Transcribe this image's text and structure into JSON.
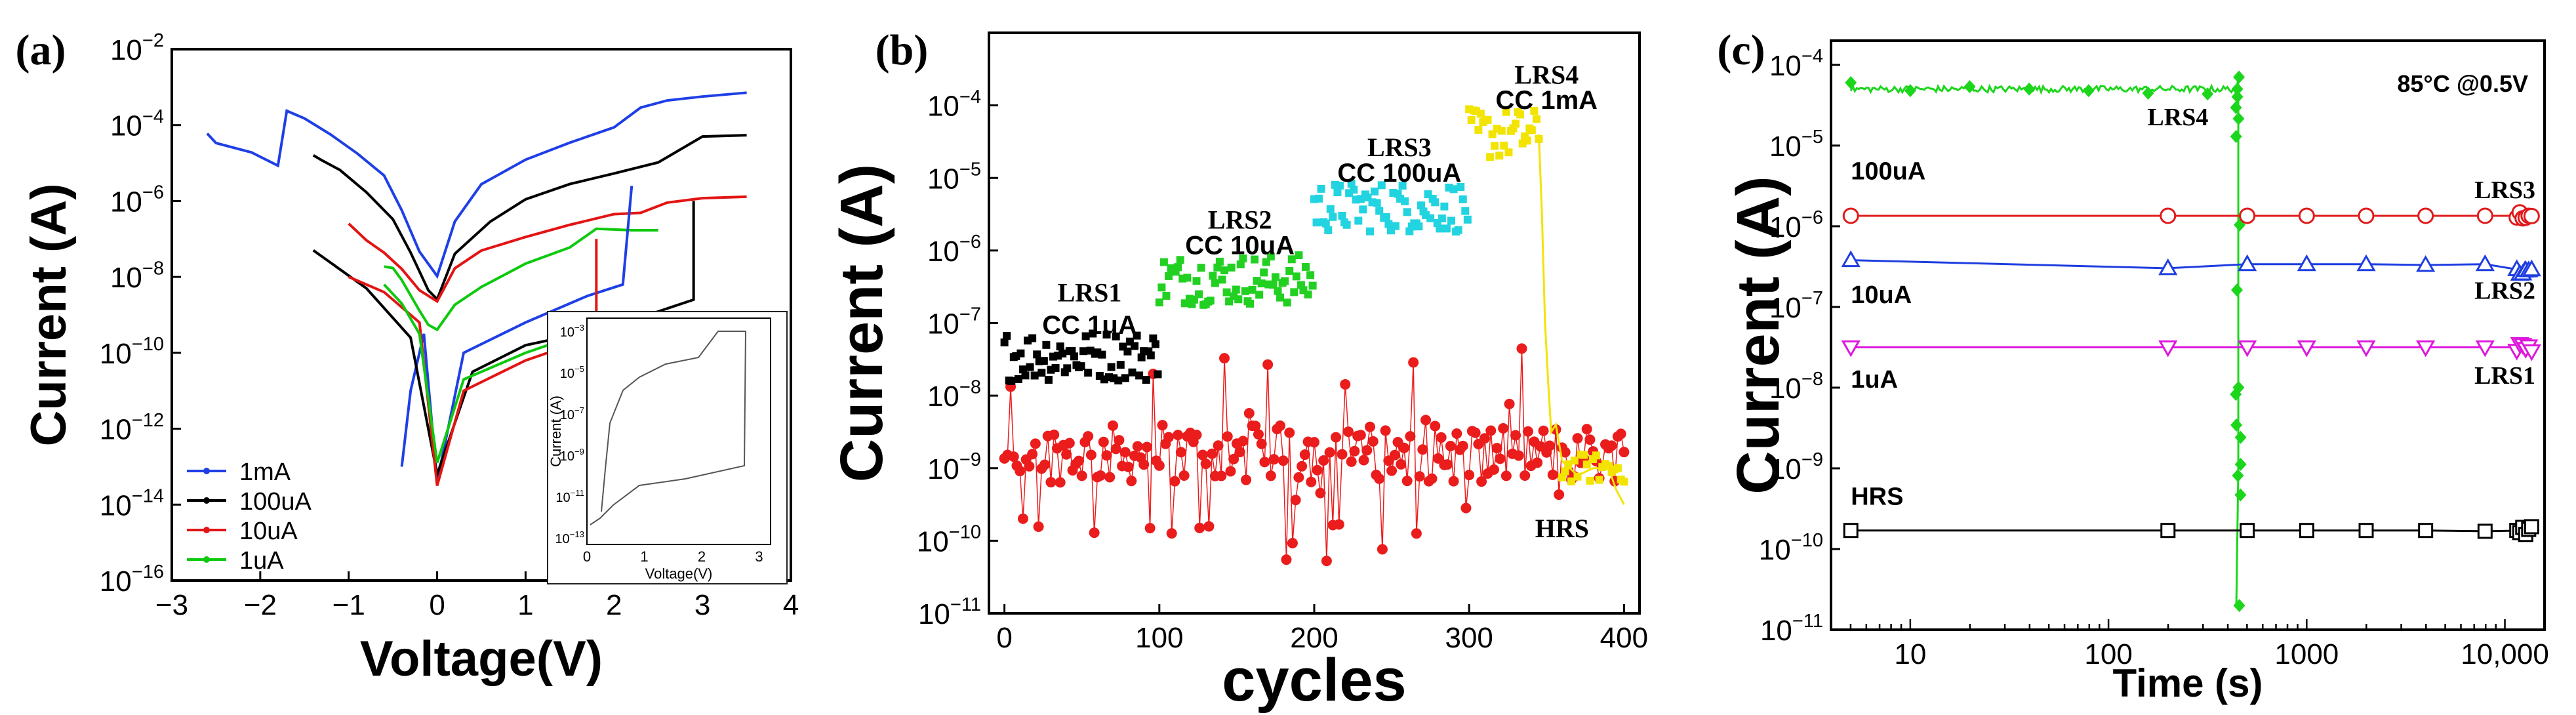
{
  "chart_data": [
    {
      "panel": "(a)",
      "type": "line",
      "xlabel": "Voltage(V)",
      "ylabel": "Current (A)",
      "xlim": [
        -3,
        4
      ],
      "ylim_log10": [
        -16,
        -2
      ],
      "xticks": [
        "−3",
        "−2",
        "−1",
        "0",
        "1",
        "2",
        "3",
        "4"
      ],
      "yticks": [
        {
          "b": "10",
          "e": "-2"
        },
        {
          "b": "10",
          "e": "-4"
        },
        {
          "b": "10",
          "e": "-6"
        },
        {
          "b": "10",
          "e": "-8"
        },
        {
          "b": "10",
          "e": "-10"
        },
        {
          "b": "10",
          "e": "-12"
        },
        {
          "b": "10",
          "e": "-14"
        },
        {
          "b": "10",
          "e": "-16"
        }
      ],
      "series": [
        {
          "name": "1mA",
          "color": "#1f3fe6",
          "x": [
            -2.6,
            -2.5,
            -2.1,
            -1.8,
            -1.7,
            -1.5,
            -1.2,
            -0.9,
            -0.6,
            -0.4,
            -0.2,
            0,
            0.2,
            0.5,
            1,
            1.5,
            2,
            2.3,
            2.6,
            3,
            3.5
          ],
          "log10I": [
            -4.2,
            -4.5,
            -4.7,
            -5.0,
            -3.6,
            -3.8,
            -4.3,
            -4.7,
            -5.3,
            -6.2,
            -7.3,
            -8.0,
            -6.5,
            -5.6,
            -4.9,
            -4.5,
            -4.1,
            -3.5,
            -3.3,
            -3.2,
            -3.2
          ]
        },
        {
          "name": "100uA",
          "color": "#000000",
          "x": [
            -1.4,
            -1.3,
            -1.1,
            -0.8,
            -0.5,
            -0.3,
            -0.1,
            0,
            0.2,
            0.6,
            1,
            1.5,
            2,
            2.5,
            3,
            3.5
          ],
          "log10I": [
            -4.8,
            -4.9,
            -5.2,
            -5.8,
            -6.5,
            -7.3,
            -8.3,
            -8.6,
            -7.4,
            -6.5,
            -6.0,
            -5.6,
            -5.3,
            -5.0,
            -4.3,
            -4.2
          ]
        },
        {
          "name": "10uA",
          "color": "#e31414",
          "x": [
            -1.0,
            -0.8,
            -0.6,
            -0.4,
            -0.2,
            0,
            0.2,
            0.5,
            1,
            1.5,
            2,
            2.3,
            2.6,
            3,
            3.5
          ],
          "log10I": [
            -6.6,
            -7.0,
            -7.4,
            -7.8,
            -8.3,
            -8.6,
            -7.8,
            -7.3,
            -6.9,
            -6.6,
            -6.4,
            -6.3,
            -6.1,
            -5.9,
            -5.9
          ]
        },
        {
          "name": "1uA",
          "color": "#0ec90e",
          "x": [
            -0.6,
            -0.5,
            -0.4,
            -0.3,
            -0.2,
            -0.1,
            0,
            0.2,
            0.5,
            1,
            1.5,
            1.8,
            2.2,
            2.5
          ],
          "log10I": [
            -7.7,
            -7.8,
            -8.1,
            -8.5,
            -8.9,
            -9.2,
            -9.4,
            -8.8,
            -8.3,
            -7.7,
            -7.2,
            -6.8,
            -6.8,
            -6.8
          ]
        }
      ],
      "legend": [
        "1mA",
        "100uA",
        "10uA",
        "1uA"
      ],
      "inset": {
        "xlabel": "Voltage(V)",
        "ylabel": "Current (A)",
        "xticks": [
          "0",
          "1",
          "2",
          "3"
        ],
        "yticks": [
          {
            "b": "10",
            "e": "-3"
          },
          {
            "b": "10",
            "e": "-5"
          },
          {
            "b": "10",
            "e": "-7"
          },
          {
            "b": "10",
            "e": "-9"
          },
          {
            "b": "10",
            "e": "-11"
          },
          {
            "b": "10",
            "e": "-13"
          }
        ]
      }
    },
    {
      "panel": "(b)",
      "type": "scatter",
      "xlabel": "cycles",
      "ylabel": "Current (A)",
      "xlim": [
        -10,
        410
      ],
      "ylim_log10": [
        -11,
        -3
      ],
      "xticks": [
        "0",
        "100",
        "200",
        "300",
        "400"
      ],
      "yticks": [
        {
          "b": "10",
          "e": "-4"
        },
        {
          "b": "10",
          "e": "-5"
        },
        {
          "b": "10",
          "e": "-6"
        },
        {
          "b": "10",
          "e": "-7"
        },
        {
          "b": "10",
          "e": "-8"
        },
        {
          "b": "10",
          "e": "-9"
        },
        {
          "b": "10",
          "e": "-10"
        },
        {
          "b": "10",
          "e": "-11"
        }
      ],
      "series": [
        {
          "name": "LRS1",
          "color": "#000000",
          "x_range": [
            0,
            100
          ],
          "log10I_mean": -7.45
        },
        {
          "name": "LRS2",
          "color": "#22d022",
          "x_range": [
            100,
            200
          ],
          "log10I_mean": -6.4
        },
        {
          "name": "LRS3",
          "color": "#22d3e0",
          "x_range": [
            200,
            300
          ],
          "log10I_mean": -5.4
        },
        {
          "name": "LRS4",
          "color": "#f2e400",
          "x_range": [
            300,
            345
          ],
          "log10I_mean": -4.4
        },
        {
          "name": "HRS",
          "color": "#ea1c1c",
          "x_range": [
            0,
            400
          ],
          "log10I_mean": -8.8
        }
      ],
      "annotations": [
        {
          "text": "LRS1",
          "color": "#000000",
          "x": 55,
          "log10I": -6.7,
          "serif": true
        },
        {
          "text": "CC 1uA",
          "color": "#000000",
          "x": 55,
          "log10I": -7.15,
          "serif": false
        },
        {
          "text": "LRS2",
          "color": "#22d022",
          "x": 152,
          "log10I": -5.7,
          "serif": true
        },
        {
          "text": "CC 10uA",
          "color": "#000000",
          "x": 152,
          "log10I": -6.05,
          "serif": false
        },
        {
          "text": "LRS3",
          "color": "#22d3e0",
          "x": 255,
          "log10I": -4.7,
          "serif": true
        },
        {
          "text": "CC 100uA",
          "color": "#000000",
          "x": 255,
          "log10I": -5.05,
          "serif": false
        },
        {
          "text": "LRS4",
          "color": "#f2e400",
          "x": 350,
          "log10I": -3.7,
          "serif": true
        },
        {
          "text": "CC 1mA",
          "color": "#000000",
          "x": 350,
          "log10I": -4.05,
          "serif": false
        },
        {
          "text": "HRS",
          "color": "#ea1c1c",
          "x": 360,
          "log10I": -9.95,
          "serif": true
        }
      ]
    },
    {
      "panel": "(c)",
      "type": "line",
      "xlabel": "Time (s)",
      "ylabel": "Current (A)",
      "xscale": "log",
      "xlim_log10": [
        0.6,
        4.2
      ],
      "ylim_log10": [
        -11,
        -3.7
      ],
      "xticks": [
        "10",
        "100",
        "1000",
        "10,000"
      ],
      "yticks": [
        {
          "b": "10",
          "e": "-4"
        },
        {
          "b": "10",
          "e": "-5"
        },
        {
          "b": "10",
          "e": "-6"
        },
        {
          "b": "10",
          "e": "-7"
        },
        {
          "b": "10",
          "e": "-8"
        },
        {
          "b": "10",
          "e": "-9"
        },
        {
          "b": "10",
          "e": "-10"
        },
        {
          "b": "10",
          "e": "-11"
        }
      ],
      "condition": "85°C @0.5V",
      "series": [
        {
          "name": "LRS4",
          "color": "#1bd61b",
          "marker": "diamond",
          "x_log10": [
            0.7,
            1.0,
            1.3,
            1.6,
            1.9,
            2.2,
            2.5,
            2.65,
            2.66
          ],
          "log10I": [
            -4.22,
            -4.32,
            -4.27,
            -4.3,
            -4.32,
            -4.35,
            -4.36,
            -4.3,
            -10.7
          ]
        },
        {
          "name": "LRS3",
          "color": "#e01a1a",
          "marker": "circle",
          "x_log10": [
            0.7,
            2.3,
            2.7,
            3.0,
            3.3,
            3.6,
            3.9,
            4.1
          ],
          "log10I": [
            -5.87,
            -5.87,
            -5.87,
            -5.87,
            -5.87,
            -5.87,
            -5.87,
            -5.87
          ]
        },
        {
          "name": "LRS2",
          "color": "#1e3ee0",
          "marker": "triangle-up",
          "x_log10": [
            0.7,
            2.3,
            2.7,
            3.0,
            3.3,
            3.6,
            3.9,
            4.1
          ],
          "log10I": [
            -6.42,
            -6.52,
            -6.47,
            -6.47,
            -6.47,
            -6.48,
            -6.47,
            -6.55
          ]
        },
        {
          "name": "LRS1",
          "color": "#dd18dd",
          "marker": "triangle-down",
          "x_log10": [
            0.7,
            2.3,
            2.7,
            3.0,
            3.3,
            3.6,
            3.9,
            4.1
          ],
          "log10I": [
            -7.5,
            -7.5,
            -7.5,
            -7.5,
            -7.5,
            -7.5,
            -7.5,
            -7.5
          ]
        },
        {
          "name": "HRS",
          "color": "#000000",
          "marker": "square",
          "x_log10": [
            0.7,
            2.3,
            2.7,
            3.0,
            3.3,
            3.6,
            3.9,
            4.1
          ],
          "log10I": [
            -9.77,
            -9.77,
            -9.77,
            -9.77,
            -9.77,
            -9.77,
            -9.78,
            -9.77
          ]
        }
      ],
      "annotations": [
        {
          "text": "100uA",
          "color": "#000000",
          "x_log10": 0.7,
          "log10I": -5.42,
          "serif": false,
          "anchor": "start"
        },
        {
          "text": "10uA",
          "color": "#000000",
          "x_log10": 0.7,
          "log10I": -6.95,
          "serif": false,
          "anchor": "start"
        },
        {
          "text": "1uA",
          "color": "#000000",
          "x_log10": 0.7,
          "log10I": -8.0,
          "serif": false,
          "anchor": "start"
        },
        {
          "text": "HRS",
          "color": "#000000",
          "x_log10": 0.7,
          "log10I": -9.45,
          "serif": false,
          "anchor": "start"
        },
        {
          "text": "LRS4",
          "color": "#1bd61b",
          "x_log10": 2.35,
          "log10I": -4.75,
          "serif": true,
          "anchor": "middle"
        },
        {
          "text": "LRS3",
          "color": "#e01a1a",
          "x_log10": 4.0,
          "log10I": -5.65,
          "serif": true,
          "anchor": "middle"
        },
        {
          "text": "LRS2",
          "color": "#1e3ee0",
          "x_log10": 4.0,
          "log10I": -6.9,
          "serif": true,
          "anchor": "middle"
        },
        {
          "text": "LRS1",
          "color": "#dd18dd",
          "x_log10": 4.0,
          "log10I": -7.95,
          "serif": true,
          "anchor": "middle"
        }
      ]
    }
  ]
}
